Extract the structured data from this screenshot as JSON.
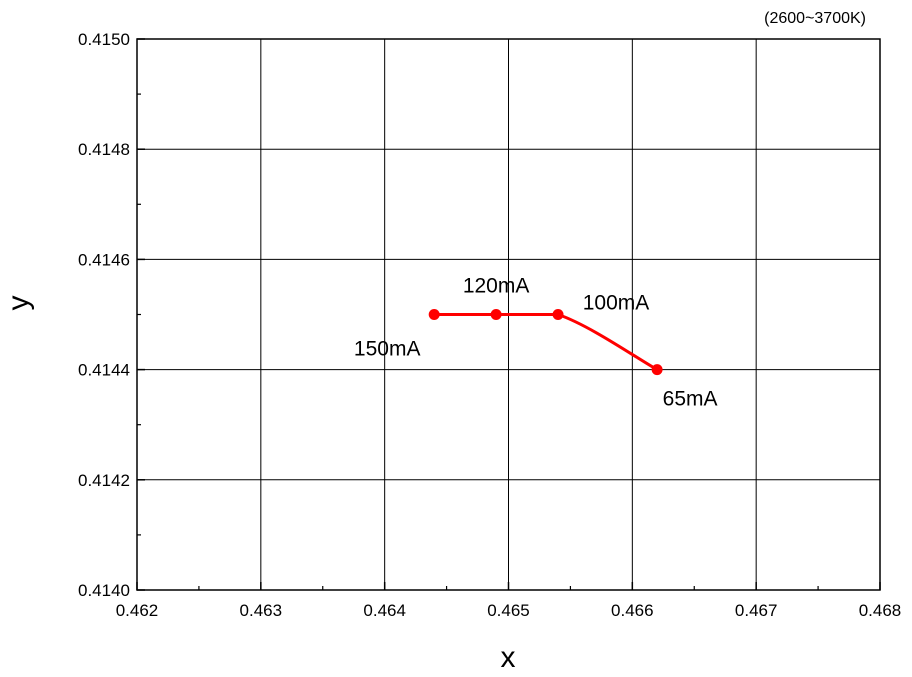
{
  "chart_data": {
    "type": "scatter",
    "title": "(2600~3700K)",
    "xlabel": "x",
    "ylabel": "y",
    "xlim": [
      0.462,
      0.468
    ],
    "ylim": [
      0.414,
      0.415
    ],
    "xticks": [
      "0.462",
      "0.463",
      "0.464",
      "0.465",
      "0.466",
      "0.467",
      "0.468"
    ],
    "yticks": [
      "0.4140",
      "0.4142",
      "0.4144",
      "0.4146",
      "0.4148",
      "0.4150"
    ],
    "grid": true,
    "series": [
      {
        "color": "#ff0000",
        "points": [
          {
            "x": 0.4644,
            "y": 0.4145,
            "label": "150mA"
          },
          {
            "x": 0.4649,
            "y": 0.4145,
            "label": "120mA"
          },
          {
            "x": 0.4654,
            "y": 0.4145,
            "label": "100mA"
          },
          {
            "x": 0.4662,
            "y": 0.4144,
            "label": "65mA"
          }
        ]
      }
    ]
  }
}
